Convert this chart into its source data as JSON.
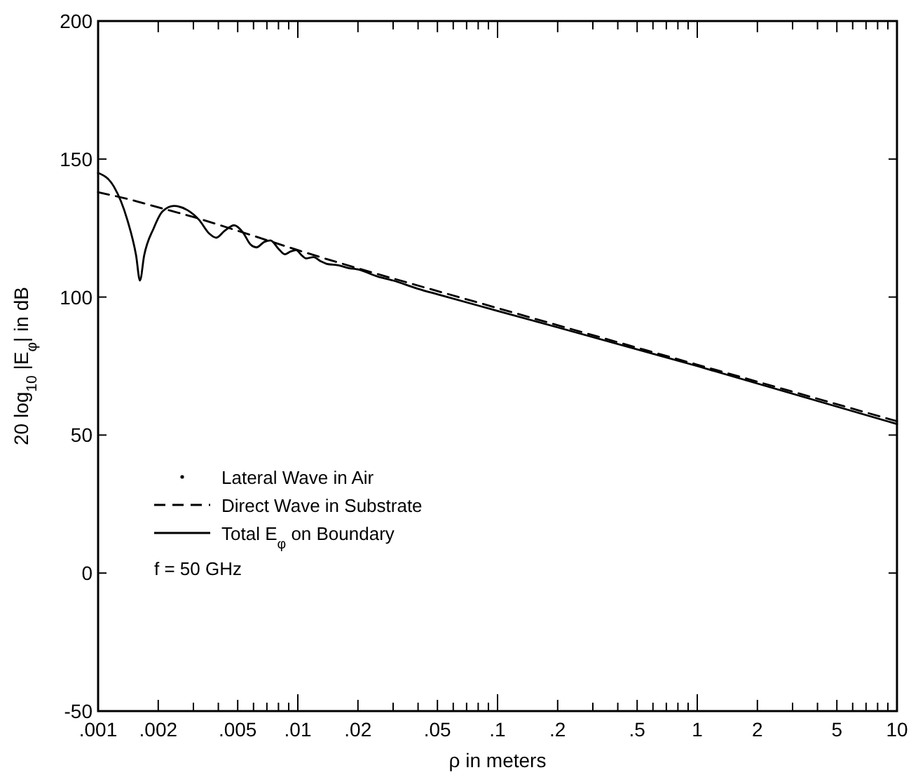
{
  "chart_data": {
    "type": "line",
    "xlabel": "ρ in meters",
    "ylabel": "20 log$_{10}$ |E$_{φ}$| in dB",
    "log": "x",
    "grid": false,
    "legend": "left",
    "xlim": [
      0.001,
      10
    ],
    "ylim": [
      -50,
      200
    ],
    "yticks": [
      -50,
      0,
      50,
      100,
      150,
      200
    ],
    "xticks": [
      {
        "value": 0.001,
        "label": ".001"
      },
      {
        "value": 0.002,
        "label": ".002"
      },
      {
        "value": 0.003,
        "label": null
      },
      {
        "value": 0.004,
        "label": null
      },
      {
        "value": 0.005,
        "label": ".005"
      },
      {
        "value": 0.006,
        "label": null
      },
      {
        "value": 0.007,
        "label": null
      },
      {
        "value": 0.008,
        "label": null
      },
      {
        "value": 0.009,
        "label": null
      },
      {
        "value": 0.01,
        "label": ".01"
      },
      {
        "value": 0.02,
        "label": ".02"
      },
      {
        "value": 0.03,
        "label": null
      },
      {
        "value": 0.04,
        "label": null
      },
      {
        "value": 0.05,
        "label": ".05"
      },
      {
        "value": 0.06,
        "label": null
      },
      {
        "value": 0.07,
        "label": null
      },
      {
        "value": 0.08,
        "label": null
      },
      {
        "value": 0.09,
        "label": null
      },
      {
        "value": 0.1,
        "label": ".1"
      },
      {
        "value": 0.2,
        "label": ".2"
      },
      {
        "value": 0.3,
        "label": null
      },
      {
        "value": 0.4,
        "label": null
      },
      {
        "value": 0.5,
        "label": ".5"
      },
      {
        "value": 0.6,
        "label": null
      },
      {
        "value": 0.7,
        "label": null
      },
      {
        "value": 0.8,
        "label": null
      },
      {
        "value": 0.9,
        "label": null
      },
      {
        "value": 1,
        "label": "1"
      },
      {
        "value": 2,
        "label": "2"
      },
      {
        "value": 3,
        "label": null
      },
      {
        "value": 4,
        "label": null
      },
      {
        "value": 5,
        "label": "5"
      },
      {
        "value": 6,
        "label": null
      },
      {
        "value": 7,
        "label": null
      },
      {
        "value": 8,
        "label": null
      },
      {
        "value": 9,
        "label": null
      },
      {
        "value": 10,
        "label": "10"
      }
    ],
    "series": [
      {
        "name": "Lateral Wave in Air",
        "color": "#000000",
        "line_style": "dotted"
      },
      {
        "name": "Direct Wave in Substrate",
        "color": "#000000",
        "line_style": "dashed",
        "x": [
          0.001,
          0.0015,
          0.002,
          0.003,
          0.005,
          0.01,
          0.1,
          1,
          10
        ],
        "values": [
          138,
          135,
          132.5,
          129,
          124,
          117,
          96,
          75.5,
          55
        ]
      },
      {
        "name": "Total E$_{φ}$ on Boundary",
        "color": "#000000",
        "line_style": "solid",
        "x": [
          0.001,
          0.0012,
          0.0014,
          0.00155,
          0.00162,
          0.0017,
          0.0019,
          0.0021,
          0.0024,
          0.0028,
          0.0032,
          0.0036,
          0.0039,
          0.0043,
          0.0048,
          0.0053,
          0.0058,
          0.0062,
          0.0068,
          0.0073,
          0.008,
          0.0086,
          0.0092,
          0.0098,
          0.0105,
          0.011,
          0.012,
          0.013,
          0.014,
          0.016,
          0.018,
          0.02,
          0.025,
          0.03,
          0.04,
          0.05,
          0.1,
          1,
          10
        ],
        "values": [
          145,
          140,
          128,
          115,
          106,
          115,
          125,
          131,
          133,
          131.5,
          128,
          123,
          121.5,
          124,
          126,
          123.5,
          119,
          118,
          120,
          120.5,
          117.5,
          115.5,
          116.5,
          117,
          115,
          114,
          114.5,
          113,
          112,
          111.5,
          110.5,
          110,
          107.5,
          106,
          103,
          101,
          95,
          75,
          54
        ]
      }
    ],
    "annotations": [
      "f = 50 GHz"
    ]
  }
}
